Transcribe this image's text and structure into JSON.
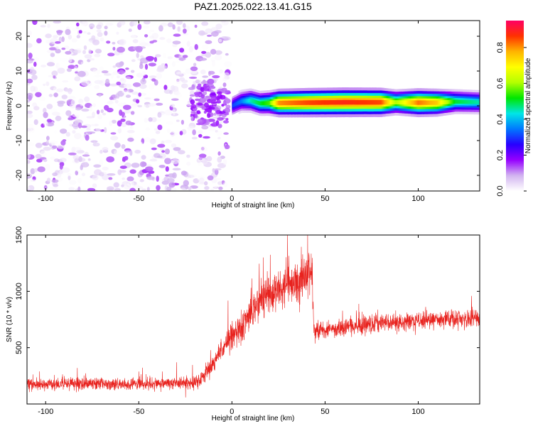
{
  "title": "PAZ1.2025.022.13.41.G15",
  "chart_data": [
    {
      "type": "heatmap",
      "xlabel": "Height of straight line (km)",
      "ylabel": "Frequency (Hz)",
      "xlim": [
        -110,
        133
      ],
      "ylim": [
        -24.5,
        24.5
      ],
      "xticks": [
        -100,
        -50,
        0,
        50,
        100
      ],
      "xtick_labels": [
        "-100",
        "-50",
        "0",
        "50",
        "100"
      ],
      "yticks": [
        -20,
        -10,
        0,
        10,
        20
      ],
      "ytick_labels": [
        "-20",
        "-10",
        "0",
        "10",
        "20"
      ],
      "colorbar": {
        "label": "Normalized spectral amplitude",
        "range": [
          0,
          0.95
        ],
        "ticks": [
          0.0,
          0.2,
          0.4,
          0.6,
          0.8
        ],
        "tick_labels": [
          "0.0",
          "0.2",
          "0.4",
          "0.6",
          "0.8"
        ],
        "colormap": [
          "#ffffff",
          "#d2b4f0",
          "#9600ff",
          "#2800ff",
          "#0078ff",
          "#00e6e6",
          "#00e600",
          "#b4ff00",
          "#ffff00",
          "#ffb400",
          "#ff3200",
          "#ff0064"
        ]
      },
      "noise_region": {
        "x": [
          -110,
          -2
        ],
        "freq": [
          -24.5,
          24.5
        ],
        "amplitude_range": [
          0.0,
          0.15
        ]
      },
      "signal_track": [
        {
          "x": 0,
          "freq": 0.0,
          "amplitude": 0.3
        },
        {
          "x": 5,
          "freq": 1.3,
          "amplitude": 0.35
        },
        {
          "x": 10,
          "freq": 1.5,
          "amplitude": 0.45
        },
        {
          "x": 15,
          "freq": 0.7,
          "amplitude": 0.5
        },
        {
          "x": 20,
          "freq": 0.8,
          "amplitude": 0.55
        },
        {
          "x": 25,
          "freq": 0.8,
          "amplitude": 0.8
        },
        {
          "x": 40,
          "freq": 0.9,
          "amplitude": 0.85
        },
        {
          "x": 60,
          "freq": 1.0,
          "amplitude": 0.88
        },
        {
          "x": 80,
          "freq": 1.0,
          "amplitude": 0.85
        },
        {
          "x": 88,
          "freq": 1.0,
          "amplitude": 0.6
        },
        {
          "x": 100,
          "freq": 0.9,
          "amplitude": 0.82
        },
        {
          "x": 110,
          "freq": 0.9,
          "amplitude": 0.75
        },
        {
          "x": 120,
          "freq": 1.2,
          "amplitude": 0.5
        },
        {
          "x": 133,
          "freq": 1.0,
          "amplitude": 0.45
        }
      ]
    },
    {
      "type": "line",
      "xlabel": "Height of straight line (km)",
      "ylabel": "SNR (10 * v/v)",
      "xlim": [
        -110,
        133
      ],
      "ylim": [
        0,
        1500
      ],
      "xticks": [
        -100,
        -50,
        0,
        50,
        100
      ],
      "xtick_labels": [
        "-100",
        "-50",
        "0",
        "50",
        "100"
      ],
      "yticks": [
        500,
        1000,
        1500
      ],
      "ytick_labels": [
        "500",
        "1000",
        "1500"
      ],
      "series": [
        {
          "color": "#e8221e",
          "x": [
            -110,
            -100,
            -80,
            -60,
            -40,
            -20,
            -15,
            -10,
            -5,
            0,
            5,
            10,
            15,
            20,
            25,
            30,
            35,
            40,
            43,
            44,
            50,
            60,
            70,
            80,
            90,
            100,
            110,
            120,
            133
          ],
          "y": [
            180,
            170,
            180,
            170,
            180,
            185,
            250,
            360,
            500,
            600,
            680,
            800,
            900,
            960,
            1020,
            1070,
            1090,
            1130,
            1150,
            650,
            660,
            680,
            700,
            720,
            720,
            740,
            750,
            760,
            760
          ]
        }
      ]
    }
  ]
}
